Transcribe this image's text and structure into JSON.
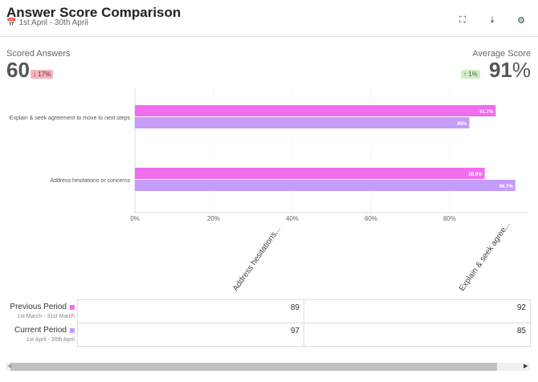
{
  "header": {
    "title": "Answer Score Comparison",
    "date_range": "1st April - 30th April",
    "icons": [
      "calendar-icon",
      "fullscreen-icon",
      "download-icon",
      "gear-icon"
    ]
  },
  "kpis": {
    "scored_answers": {
      "label": "Scored Answers",
      "value": "60",
      "change": "17%",
      "direction": "down"
    },
    "average_score": {
      "label": "Average Score",
      "value": "91",
      "unit": "%",
      "change": "1%",
      "direction": "up"
    }
  },
  "chart_data": {
    "type": "bar",
    "orientation": "horizontal",
    "categories": [
      "Explain & seek agreement to move to next steps",
      "Address hesitations or concerns"
    ],
    "series": [
      {
        "name": "Previous Period",
        "color": "#f06df0",
        "values": [
          91.7,
          88.9
        ],
        "labels": [
          "91.7%",
          "88.9%"
        ]
      },
      {
        "name": "Current Period",
        "color": "#c49cfc",
        "values": [
          85,
          96.7
        ],
        "labels": [
          "85%",
          "96.7%"
        ]
      }
    ],
    "xlim": [
      0,
      100
    ],
    "xticks": [
      "0%",
      "20%",
      "40%",
      "60%",
      "80%"
    ],
    "grid": true
  },
  "table": {
    "columns": [
      "Address hesitations...",
      "Explain & seek agree..."
    ],
    "rows": [
      {
        "name": "Previous Period",
        "dates": "1st March - 31st March",
        "color": "#f06df0",
        "values": [
          "89",
          "92"
        ]
      },
      {
        "name": "Current Period",
        "dates": "1st April - 30th April",
        "color": "#c49cfc",
        "values": [
          "97",
          "85"
        ]
      }
    ]
  }
}
